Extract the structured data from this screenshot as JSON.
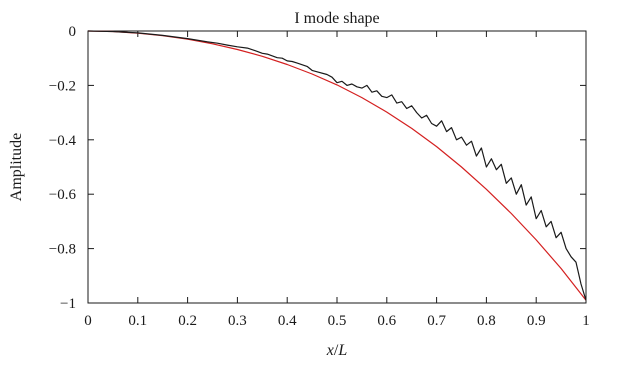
{
  "chart_data": {
    "type": "line",
    "title": "I mode shape",
    "xlabel": "x/L",
    "xlabel_parts": {
      "var": "x",
      "sep": "/",
      "den": "L"
    },
    "ylabel": "Amplitude",
    "xlim": [
      0,
      1
    ],
    "ylim": [
      -1,
      0
    ],
    "xticks": [
      "0",
      "0.1",
      "0.2",
      "0.3",
      "0.4",
      "0.5",
      "0.6",
      "0.7",
      "0.8",
      "0.9",
      "1"
    ],
    "yticks": [
      "0",
      "−0.2",
      "−0.4",
      "−0.6",
      "−0.8",
      "−1"
    ],
    "grid": false,
    "series": [
      {
        "color": "#d42020",
        "x": [
          0,
          0.05,
          0.1,
          0.15,
          0.2,
          0.25,
          0.3,
          0.35,
          0.4,
          0.45,
          0.5,
          0.55,
          0.6,
          0.65,
          0.7,
          0.75,
          0.8,
          0.85,
          0.9,
          0.95,
          1.0
        ],
        "y": [
          0,
          -0.002,
          -0.008,
          -0.017,
          -0.03,
          -0.047,
          -0.068,
          -0.093,
          -0.123,
          -0.158,
          -0.198,
          -0.245,
          -0.298,
          -0.358,
          -0.425,
          -0.5,
          -0.582,
          -0.671,
          -0.768,
          -0.873,
          -0.99
        ]
      },
      {
        "color": "#1a1a1a",
        "x": [
          0,
          0.05,
          0.1,
          0.15,
          0.2,
          0.24,
          0.26,
          0.28,
          0.3,
          0.32,
          0.34,
          0.35,
          0.36,
          0.38,
          0.39,
          0.4,
          0.41,
          0.42,
          0.44,
          0.45,
          0.46,
          0.48,
          0.49,
          0.5,
          0.51,
          0.52,
          0.53,
          0.54,
          0.55,
          0.56,
          0.57,
          0.58,
          0.59,
          0.6,
          0.61,
          0.62,
          0.63,
          0.64,
          0.65,
          0.66,
          0.67,
          0.68,
          0.69,
          0.7,
          0.71,
          0.72,
          0.73,
          0.74,
          0.75,
          0.76,
          0.77,
          0.78,
          0.79,
          0.8,
          0.81,
          0.82,
          0.83,
          0.84,
          0.85,
          0.86,
          0.87,
          0.88,
          0.89,
          0.9,
          0.91,
          0.92,
          0.93,
          0.94,
          0.95,
          0.96,
          0.97,
          0.98,
          0.99,
          1.0
        ],
        "y": [
          0,
          -0.002,
          -0.007,
          -0.016,
          -0.028,
          -0.04,
          -0.045,
          -0.052,
          -0.058,
          -0.063,
          -0.075,
          -0.082,
          -0.085,
          -0.098,
          -0.1,
          -0.11,
          -0.112,
          -0.118,
          -0.13,
          -0.145,
          -0.15,
          -0.16,
          -0.17,
          -0.19,
          -0.185,
          -0.2,
          -0.195,
          -0.205,
          -0.21,
          -0.2,
          -0.225,
          -0.22,
          -0.24,
          -0.245,
          -0.235,
          -0.265,
          -0.26,
          -0.285,
          -0.275,
          -0.3,
          -0.32,
          -0.31,
          -0.34,
          -0.35,
          -0.33,
          -0.37,
          -0.355,
          -0.4,
          -0.39,
          -0.42,
          -0.405,
          -0.46,
          -0.43,
          -0.5,
          -0.47,
          -0.51,
          -0.49,
          -0.56,
          -0.54,
          -0.6,
          -0.565,
          -0.64,
          -0.61,
          -0.69,
          -0.66,
          -0.72,
          -0.7,
          -0.76,
          -0.74,
          -0.8,
          -0.83,
          -0.85,
          -0.93,
          -0.99
        ]
      }
    ]
  }
}
